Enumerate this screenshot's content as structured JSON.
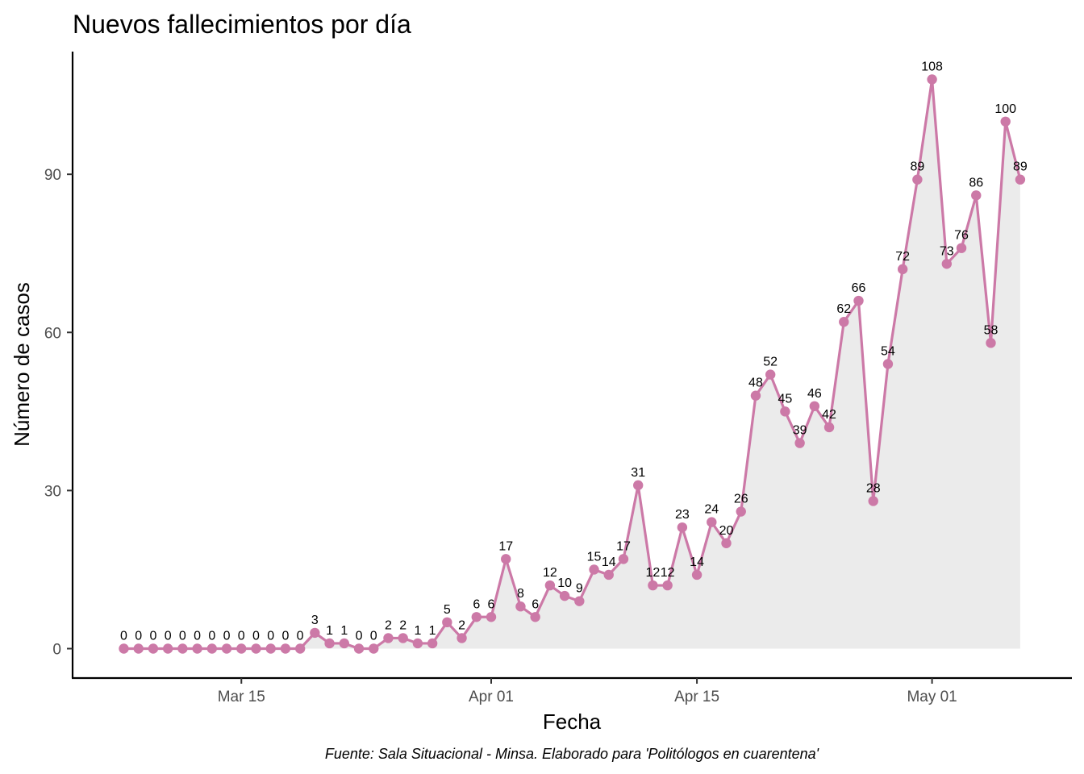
{
  "chart_data": {
    "type": "line",
    "title": "Nuevos fallecimientos por día",
    "xlabel": "Fecha",
    "ylabel": "Número de casos",
    "caption": "Fuente: Sala Situacional - Minsa. Elaborado para 'Politólogos en cuarentena'",
    "x_start": "2020-03-07",
    "x_end": "2020-05-08",
    "x_ticks": [
      {
        "date": "2020-03-15",
        "label": "Mar 15"
      },
      {
        "date": "2020-04-01",
        "label": "Apr 01"
      },
      {
        "date": "2020-04-15",
        "label": "Apr 15"
      },
      {
        "date": "2020-05-01",
        "label": "May 01"
      }
    ],
    "y_ticks": [
      0,
      30,
      60,
      90
    ],
    "ylim": [
      0,
      108
    ],
    "grid": false,
    "series": [
      {
        "area": true,
        "color": "#CC79A7",
        "fill_color": "#EBEBEB",
        "points": [
          {
            "date": "2020-03-07",
            "value": 0
          },
          {
            "date": "2020-03-08",
            "value": 0
          },
          {
            "date": "2020-03-09",
            "value": 0
          },
          {
            "date": "2020-03-10",
            "value": 0
          },
          {
            "date": "2020-03-11",
            "value": 0
          },
          {
            "date": "2020-03-12",
            "value": 0
          },
          {
            "date": "2020-03-13",
            "value": 0
          },
          {
            "date": "2020-03-14",
            "value": 0
          },
          {
            "date": "2020-03-15",
            "value": 0
          },
          {
            "date": "2020-03-16",
            "value": 0
          },
          {
            "date": "2020-03-17",
            "value": 0
          },
          {
            "date": "2020-03-18",
            "value": 0
          },
          {
            "date": "2020-03-19",
            "value": 0
          },
          {
            "date": "2020-03-20",
            "value": 3
          },
          {
            "date": "2020-03-21",
            "value": 1
          },
          {
            "date": "2020-03-22",
            "value": 1
          },
          {
            "date": "2020-03-23",
            "value": 0
          },
          {
            "date": "2020-03-24",
            "value": 0
          },
          {
            "date": "2020-03-25",
            "value": 2
          },
          {
            "date": "2020-03-26",
            "value": 2
          },
          {
            "date": "2020-03-27",
            "value": 1
          },
          {
            "date": "2020-03-28",
            "value": 1
          },
          {
            "date": "2020-03-29",
            "value": 5
          },
          {
            "date": "2020-03-30",
            "value": 2
          },
          {
            "date": "2020-03-31",
            "value": 6
          },
          {
            "date": "2020-04-01",
            "value": 6
          },
          {
            "date": "2020-04-02",
            "value": 17
          },
          {
            "date": "2020-04-03",
            "value": 8
          },
          {
            "date": "2020-04-04",
            "value": 6
          },
          {
            "date": "2020-04-05",
            "value": 12
          },
          {
            "date": "2020-04-06",
            "value": 10
          },
          {
            "date": "2020-04-07",
            "value": 9
          },
          {
            "date": "2020-04-08",
            "value": 15
          },
          {
            "date": "2020-04-09",
            "value": 14
          },
          {
            "date": "2020-04-10",
            "value": 17
          },
          {
            "date": "2020-04-11",
            "value": 31
          },
          {
            "date": "2020-04-12",
            "value": 12
          },
          {
            "date": "2020-04-13",
            "value": 12
          },
          {
            "date": "2020-04-14",
            "value": 23
          },
          {
            "date": "2020-04-15",
            "value": 14
          },
          {
            "date": "2020-04-16",
            "value": 24
          },
          {
            "date": "2020-04-17",
            "value": 20
          },
          {
            "date": "2020-04-18",
            "value": 26
          },
          {
            "date": "2020-04-19",
            "value": 48
          },
          {
            "date": "2020-04-20",
            "value": 52
          },
          {
            "date": "2020-04-21",
            "value": 45
          },
          {
            "date": "2020-04-22",
            "value": 39
          },
          {
            "date": "2020-04-23",
            "value": 46
          },
          {
            "date": "2020-04-24",
            "value": 42
          },
          {
            "date": "2020-04-25",
            "value": 62
          },
          {
            "date": "2020-04-26",
            "value": 66
          },
          {
            "date": "2020-04-27",
            "value": 28
          },
          {
            "date": "2020-04-28",
            "value": 54
          },
          {
            "date": "2020-04-29",
            "value": 72
          },
          {
            "date": "2020-04-30",
            "value": 89
          },
          {
            "date": "2020-05-01",
            "value": 108
          },
          {
            "date": "2020-05-02",
            "value": 73
          },
          {
            "date": "2020-05-03",
            "value": 76
          },
          {
            "date": "2020-05-04",
            "value": 86
          },
          {
            "date": "2020-05-05",
            "value": 58
          },
          {
            "date": "2020-05-06",
            "value": 100
          },
          {
            "date": "2020-05-07",
            "value": 89
          }
        ]
      }
    ]
  }
}
